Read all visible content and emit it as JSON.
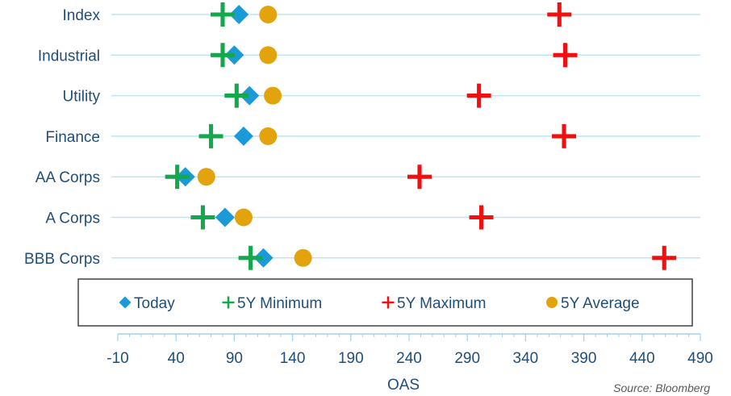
{
  "chart_data": {
    "type": "scatter",
    "categories": [
      "Index",
      "Industrial",
      "Utility",
      "Finance",
      "AA Corps",
      "A Corps",
      "BBB Corps"
    ],
    "series": [
      {
        "name": "Today",
        "marker": "diamond",
        "color": "#1a9ad6",
        "values": [
          94,
          90,
          103,
          98,
          48,
          82,
          115
        ]
      },
      {
        "name": "5Y Minimum",
        "marker": "plus",
        "color": "#12a84b",
        "values": [
          80,
          80,
          92,
          70,
          41,
          63,
          104
        ]
      },
      {
        "name": "5Y Maximum",
        "marker": "plus",
        "color": "#f20f0f",
        "values": [
          369,
          374,
          300,
          373,
          249,
          302,
          459
        ]
      },
      {
        "name": "5Y Average",
        "marker": "circle",
        "color": "#e3a30c",
        "values": [
          119,
          119,
          123,
          119,
          66,
          98,
          149
        ]
      }
    ],
    "xlabel": "OAS",
    "xlim": [
      -10,
      490
    ],
    "xticks": [
      "-10",
      "40",
      "90",
      "140",
      "190",
      "240",
      "290",
      "340",
      "390",
      "440",
      "490"
    ],
    "grid": "horizontal",
    "legend_position": "bottom",
    "source": "Source: Bloomberg"
  },
  "colors": {
    "label_text": "#1f4e79",
    "gridline": "#bfe3f3",
    "axis": "#9fd3ec"
  }
}
